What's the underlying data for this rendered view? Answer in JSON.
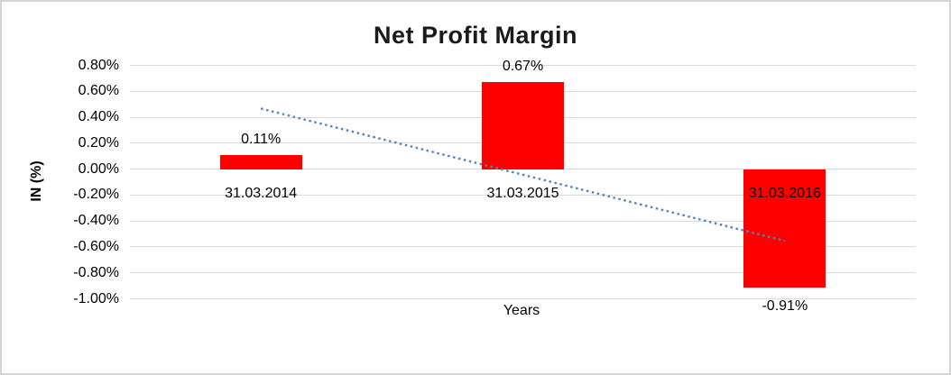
{
  "window": {
    "background_color": "#ffffff",
    "border_color": "#d4d4d4"
  },
  "chart_data": {
    "type": "bar",
    "title": "Net Profit Margin",
    "categories": [
      "31.03.2014",
      "31.03.2015",
      "31.03.2016"
    ],
    "values": [
      0.11,
      0.67,
      -0.91
    ],
    "value_unit": "percent",
    "data_labels": [
      "0.11%",
      "0.67%",
      "-0.91%"
    ],
    "xlabel": "Years",
    "ylabel": "IN (%)",
    "ylim": [
      -1.0,
      0.8
    ],
    "yticks": [
      0.8,
      0.6,
      0.4,
      0.2,
      0.0,
      -0.2,
      -0.4,
      -0.6,
      -0.8,
      -1.0
    ],
    "ytick_labels": [
      "0.80%",
      "0.60%",
      "0.40%",
      "0.20%",
      "0.00%",
      "-0.20%",
      "-0.40%",
      "-0.60%",
      "-0.80%",
      "-1.00%"
    ],
    "grid": true,
    "legend": false,
    "bar_color": "#ff0000",
    "gridline_color": "#d9d9d9",
    "title_color": "#1a1a1a",
    "text_color": "#000000",
    "trendline": {
      "type": "linear",
      "style": "dotted",
      "color": "#4a86c8",
      "start_value": 0.467,
      "end_value": -0.553
    }
  }
}
